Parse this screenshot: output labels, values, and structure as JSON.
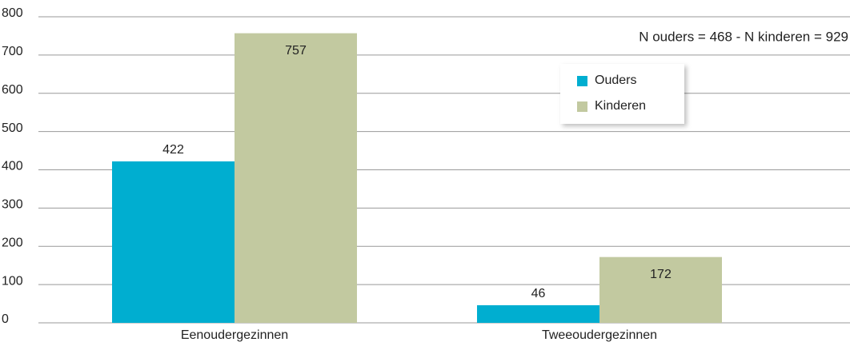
{
  "chart_data": {
    "type": "bar",
    "annotation": "N ouders = 468 - N kinderen = 929",
    "categories": [
      "Eenoudergezinnen",
      "Tweeoudergezinnen"
    ],
    "series": [
      {
        "name": "Ouders",
        "color": "#00aed0",
        "values": [
          422,
          46
        ]
      },
      {
        "name": "Kinderen",
        "color": "#c2c9a0",
        "values": [
          757,
          172
        ]
      }
    ],
    "ylim": [
      0,
      800
    ],
    "yticks": [
      0,
      100,
      200,
      300,
      400,
      500,
      600,
      700,
      800
    ],
    "grid": true,
    "legend": "upper right"
  }
}
